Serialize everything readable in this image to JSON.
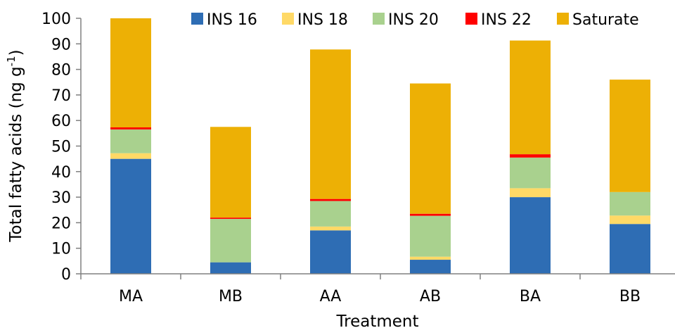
{
  "chart_data": {
    "type": "bar",
    "stacked": true,
    "categories": [
      "MA",
      "MB",
      "AA",
      "AB",
      "BA",
      "BB"
    ],
    "series": [
      {
        "name": "INS 16",
        "color": "#2E6DB4",
        "values": [
          45,
          4.5,
          17,
          5.5,
          30,
          19.5
        ]
      },
      {
        "name": "INS 18",
        "color": "#FFD966",
        "values": [
          2.2,
          0,
          1.5,
          1.2,
          3.5,
          3.3
        ]
      },
      {
        "name": "INS 20",
        "color": "#A9D18E",
        "values": [
          9.3,
          17,
          10,
          16,
          12,
          9.2
        ]
      },
      {
        "name": "INS 22",
        "color": "#FF0000",
        "values": [
          0.8,
          0.5,
          0.8,
          0.8,
          1.3,
          0
        ]
      },
      {
        "name": "Saturate",
        "color": "#EDB005",
        "values": [
          42.7,
          35.5,
          58.5,
          51,
          44.5,
          44
        ]
      }
    ],
    "xlabel": "Treatment",
    "ylabel": "Total fatty acids (ng g",
    "ylabel_sup": "-1",
    "ylabel_tail": ")",
    "ylim": [
      0,
      100
    ],
    "yticks": [
      0,
      10,
      20,
      30,
      40,
      50,
      60,
      70,
      80,
      90,
      100
    ],
    "legend_position": "top",
    "grid": false
  }
}
